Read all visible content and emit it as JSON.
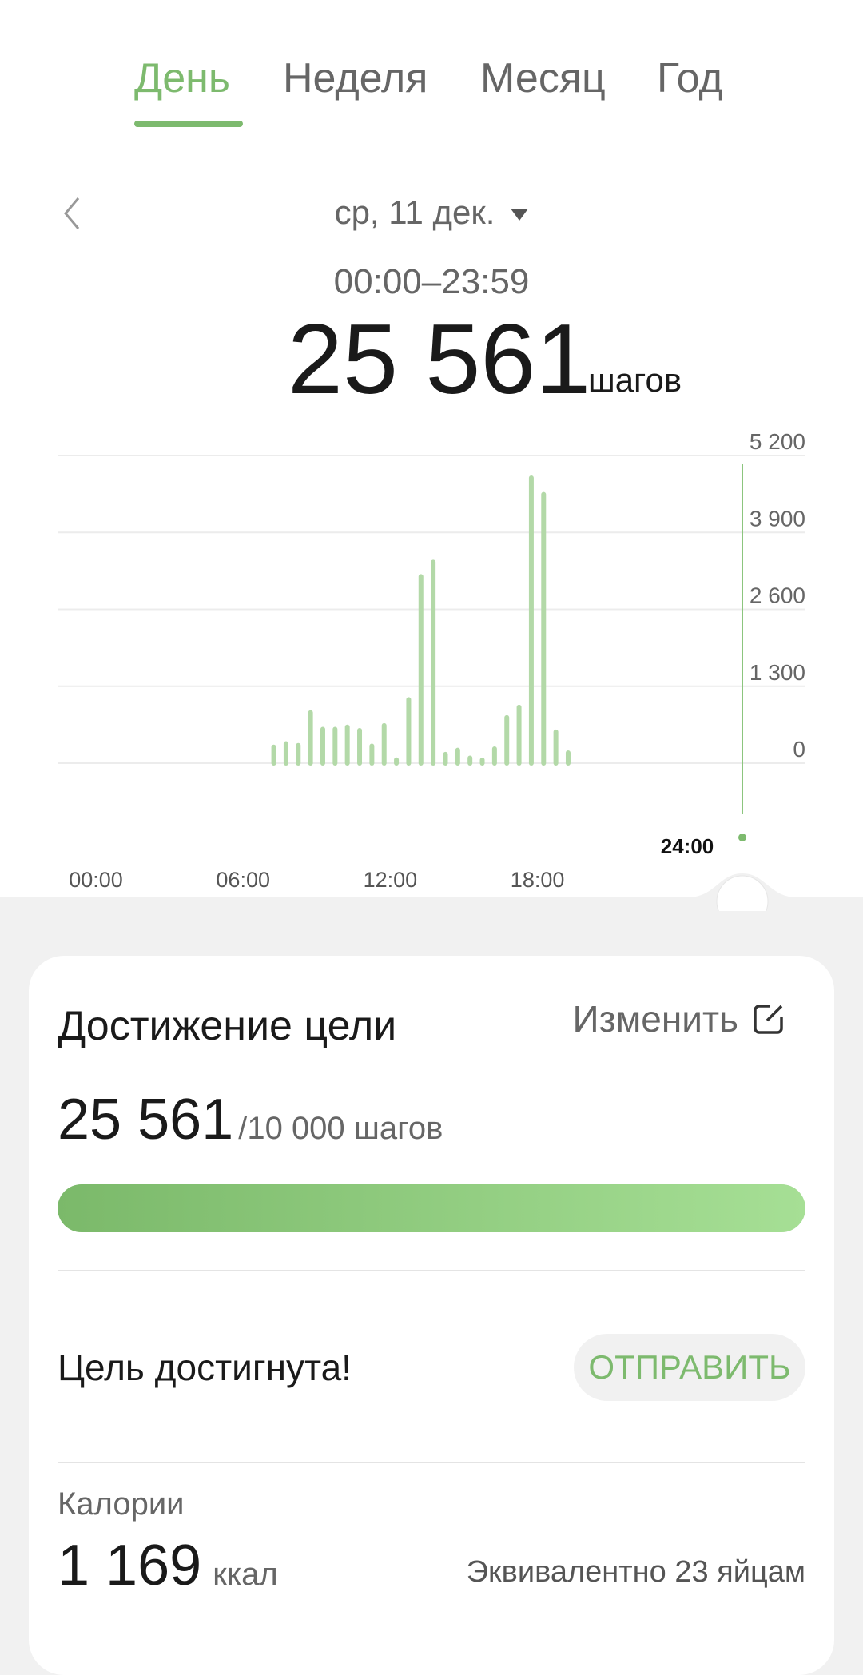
{
  "tabs": [
    {
      "label": "День",
      "active": true
    },
    {
      "label": "Неделя"
    },
    {
      "label": "Месяц"
    },
    {
      "label": "Год"
    }
  ],
  "date": {
    "label": "ср, 11 дек.",
    "range": "00:00–23:59"
  },
  "total": {
    "value": "25 561",
    "unit": "шагов"
  },
  "chart_data": {
    "type": "bar",
    "x_unit": "time of day, 30-minute bins (bin start)",
    "x": [
      "07:00",
      "07:30",
      "08:00",
      "08:30",
      "09:00",
      "09:30",
      "10:00",
      "10:30",
      "11:00",
      "11:30",
      "12:00",
      "12:30",
      "13:00",
      "13:30",
      "14:00",
      "14:30",
      "15:00",
      "15:30",
      "16:00",
      "16:30",
      "17:00",
      "17:30",
      "18:00",
      "18:30",
      "19:00"
    ],
    "values": [
      274,
      331,
      300,
      854,
      574,
      574,
      611,
      554,
      290,
      636,
      57,
      1076,
      3156,
      3399,
      150,
      222,
      88,
      36,
      243,
      771,
      947,
      4822,
      4543,
      528,
      176
    ],
    "ylim": [
      0,
      5200
    ],
    "y_ticks": [
      "5 200",
      "3 900",
      "2 600",
      "1 300",
      "0"
    ],
    "x_ticks": [
      "00:00",
      "06:00",
      "12:00",
      "18:00"
    ],
    "cursor_label": "24:00",
    "grid": true,
    "color": "#b3d9a8"
  },
  "goal": {
    "title": "Достижение цели",
    "edit_label": "Изменить",
    "value": "25 561",
    "target": "/10 000 шагов",
    "progress_percent": 100,
    "status": "Цель достигнута!",
    "share_label": "ОТПРАВИТЬ"
  },
  "calories": {
    "label": "Калории",
    "value": "1 169",
    "unit": "ккал",
    "equivalent": "Эквивалентно 23 яйцам"
  },
  "colors": {
    "accent": "#7dba6e",
    "bar": "#b3d9a8",
    "background": "#f1f1f1"
  }
}
